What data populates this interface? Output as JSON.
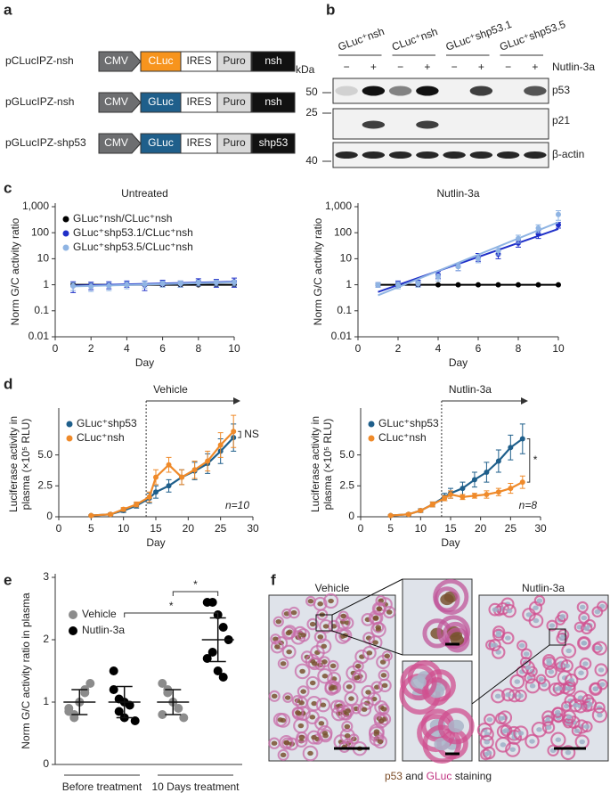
{
  "panel_labels": [
    "a",
    "b",
    "c",
    "d",
    "e",
    "f"
  ],
  "constructs": {
    "rows": [
      {
        "name": "pCLucIPZ-nsh",
        "parts": [
          "CMV",
          "CLuc",
          "IRES",
          "Puro",
          "nsh"
        ]
      },
      {
        "name": "pGLucIPZ-nsh",
        "parts": [
          "CMV",
          "GLuc",
          "IRES",
          "Puro",
          "nsh"
        ]
      },
      {
        "name": "pGLucIPZ-shp53",
        "parts": [
          "CMV",
          "GLuc",
          "IRES",
          "Puro",
          "shp53"
        ]
      }
    ]
  },
  "blot": {
    "groups": [
      "GLuc⁺nsh",
      "CLuc⁺nsh",
      "GLuc⁺shp53.1",
      "GLuc⁺shp53.5"
    ],
    "treatment": [
      "−",
      "+",
      "−",
      "+",
      "−",
      "+",
      "−",
      "+"
    ],
    "treatment_label": "Nutlin-3a",
    "unit": "kDa",
    "markers": [
      50,
      25,
      40
    ],
    "proteins": [
      "p53",
      "p21",
      "β-actin"
    ]
  },
  "chart_data": [
    {
      "type": "line",
      "title": "Untreated",
      "xlabel": "Day",
      "ylabel": "Norm G/C activity ratio",
      "log_y": true,
      "xlim": [
        0,
        10
      ],
      "ylim": [
        0.01,
        1000
      ],
      "xticks": [
        0,
        2,
        4,
        6,
        8,
        10
      ],
      "yticks": [
        0.01,
        0.1,
        1,
        10,
        100,
        {
          "value": 1000,
          "label": "1,000"
        }
      ],
      "legend": "upper left",
      "fit": "exponential",
      "x": [
        1,
        2,
        3,
        4,
        5,
        6,
        7,
        8,
        9,
        10
      ],
      "series": [
        {
          "name": "GLuc⁺nsh/CLuc⁺nsh",
          "color": "#000000",
          "values": [
            1,
            1,
            1,
            1,
            1,
            1,
            1,
            1,
            1,
            1
          ]
        },
        {
          "name": "GLuc⁺shp53.1/CLuc⁺nsh",
          "color": "#1f2fc8",
          "values": [
            0.9,
            0.95,
            1.0,
            1.1,
            1.0,
            1.2,
            1.1,
            1.3,
            1.2,
            1.3
          ],
          "errors": [
            0.4,
            0.3,
            0.3,
            0.3,
            0.4,
            0.3,
            0.3,
            0.4,
            0.4,
            0.5
          ]
        },
        {
          "name": "GLuc⁺shp53.5/CLuc⁺nsh",
          "color": "#8fb4e3",
          "values": [
            0.9,
            0.85,
            0.9,
            1.0,
            1.05,
            1.1,
            1.1,
            1.2,
            1.2,
            1.2
          ],
          "errors": [
            0.3,
            0.3,
            0.3,
            0.3,
            0.3,
            0.3,
            0.3,
            0.3,
            0.3,
            0.3
          ]
        }
      ]
    },
    {
      "type": "line",
      "title": "Nutlin-3a",
      "xlabel": "Day",
      "ylabel": "Norm G/C activity ratio",
      "log_y": true,
      "xlim": [
        0,
        10
      ],
      "ylim": [
        0.01,
        1000
      ],
      "xticks": [
        0,
        2,
        4,
        6,
        8,
        10
      ],
      "yticks": [
        0.01,
        0.1,
        1,
        10,
        100,
        {
          "value": 1000,
          "label": "1,000"
        }
      ],
      "fit": "exponential",
      "x": [
        1,
        2,
        3,
        4,
        5,
        6,
        7,
        8,
        9,
        10
      ],
      "series": [
        {
          "color": "#000000",
          "values": [
            1,
            1,
            1,
            1,
            1,
            1,
            1,
            1,
            1,
            1
          ]
        },
        {
          "color": "#1f2fc8",
          "values": [
            1,
            1.1,
            1.2,
            2.5,
            5,
            12,
            15,
            40,
            90,
            200
          ],
          "errors": [
            0.2,
            0.3,
            0.3,
            0.8,
            1.5,
            4,
            5,
            12,
            30,
            50
          ]
        },
        {
          "color": "#8fb4e3",
          "values": [
            1,
            1,
            1.1,
            2,
            5,
            10,
            20,
            60,
            150,
            500
          ],
          "errors": [
            0.2,
            0.3,
            0.3,
            0.6,
            1.5,
            3,
            6,
            20,
            50,
            200
          ]
        }
      ]
    },
    {
      "type": "line",
      "xlabel": "Day",
      "ylabel": [
        "Luciferase activity in",
        "plasma (×10⁵ RLU)"
      ],
      "xlim": [
        0,
        30
      ],
      "ylim": [
        0,
        8.5
      ],
      "xticks": [
        0,
        5,
        10,
        15,
        20,
        25,
        30
      ],
      "yticks": [
        0,
        2.5,
        {
          "value": 5,
          "label": "5.0"
        }
      ],
      "legend": "upper left",
      "fit": "trend",
      "treatment": {
        "label": "Vehicle",
        "start": 13.5
      },
      "bracket": "NS",
      "note": "n=10",
      "x": [
        5,
        8,
        10,
        12,
        14,
        15,
        17,
        19,
        21,
        23,
        25,
        27
      ],
      "series": [
        {
          "name": "GLuc⁺shp53",
          "color": "#1f5f8b",
          "values": [
            0.1,
            0.2,
            0.5,
            0.9,
            1.5,
            2.0,
            2.5,
            3.2,
            3.7,
            4.3,
            5.3,
            6.4
          ],
          "errors": [
            0.05,
            0.1,
            0.15,
            0.2,
            0.4,
            0.5,
            0.5,
            0.6,
            0.7,
            0.8,
            1.0,
            1.1
          ]
        },
        {
          "name": "CLuc⁺nsh",
          "color": "#ef8a2a",
          "values": [
            0.1,
            0.2,
            0.6,
            1.0,
            1.6,
            3.2,
            4.2,
            3.2,
            3.8,
            4.5,
            5.8,
            6.9
          ],
          "errors": [
            0.05,
            0.1,
            0.15,
            0.2,
            0.4,
            0.6,
            0.6,
            0.6,
            0.7,
            0.8,
            1.0,
            1.3
          ]
        }
      ]
    },
    {
      "type": "line",
      "xlabel": "Day",
      "ylabel": [
        "Luciferase activity in",
        "plasma (×10⁵ RLU)"
      ],
      "xlim": [
        0,
        30
      ],
      "ylim": [
        0,
        8.5
      ],
      "xticks": [
        0,
        5,
        10,
        15,
        20,
        25,
        30
      ],
      "yticks": [
        0,
        2.5,
        {
          "value": 5,
          "label": "5.0"
        }
      ],
      "legend": "upper left",
      "fit": "trend",
      "treatment": {
        "label": "Nutlin-3a",
        "start": 13.5
      },
      "bracket": "*",
      "note": "n=8",
      "x": [
        5,
        8,
        10,
        12,
        14,
        15,
        17,
        19,
        21,
        23,
        25,
        27
      ],
      "series": [
        {
          "name": "GLuc⁺shp53",
          "color": "#1f5f8b",
          "values": [
            0.1,
            0.2,
            0.5,
            1.0,
            1.6,
            1.9,
            2.3,
            3.0,
            3.6,
            4.5,
            5.6,
            6.3
          ],
          "errors": [
            0.05,
            0.1,
            0.15,
            0.2,
            0.3,
            0.4,
            0.5,
            0.6,
            0.8,
            0.9,
            1.0,
            1.2
          ]
        },
        {
          "name": "CLuc⁺nsh",
          "color": "#ef8a2a",
          "values": [
            0.1,
            0.2,
            0.5,
            1.0,
            1.5,
            1.8,
            1.6,
            1.7,
            1.8,
            2.0,
            2.3,
            2.8
          ],
          "errors": [
            0.05,
            0.1,
            0.1,
            0.2,
            0.2,
            0.3,
            0.2,
            0.2,
            0.3,
            0.3,
            0.4,
            0.5
          ]
        }
      ]
    },
    {
      "type": "dot",
      "ylabel": "Norm G/C activity ratio in plasma",
      "ylim": [
        0,
        3
      ],
      "yticks": [
        0,
        1,
        2,
        3
      ],
      "categories": [
        "Before treatment",
        "10 Days treatment"
      ],
      "legend": "upper left",
      "series": [
        {
          "name": "Vehicle",
          "color": "#8c8c8c"
        },
        {
          "name": "Nutlin-3a",
          "color": "#000000"
        }
      ],
      "groups": [
        {
          "category": 0,
          "series": 0,
          "values": [
            0.85,
            0.8,
            1.0,
            1.2,
            1.3,
            0.9,
            0.75,
            1.0,
            1.15
          ],
          "mean": 1.0,
          "sd": 0.2
        },
        {
          "category": 0,
          "series": 1,
          "values": [
            1.5,
            1.05,
            1.0,
            0.95,
            0.7,
            1.2,
            0.85,
            0.75
          ],
          "mean": 1.0,
          "sd": 0.25
        },
        {
          "category": 1,
          "series": 0,
          "values": [
            1.3,
            1.2,
            1.0,
            0.9,
            0.75,
            0.8,
            1.15,
            1.0
          ],
          "mean": 1.0,
          "sd": 0.2
        },
        {
          "category": 1,
          "series": 1,
          "values": [
            2.6,
            2.6,
            2.4,
            2.2,
            2.0,
            1.7,
            1.8,
            1.5,
            1.4
          ],
          "mean": 2.0,
          "sd": 0.35
        }
      ],
      "significance": [
        "*",
        "*"
      ]
    }
  ],
  "staining": {
    "titles": [
      "Vehicle",
      "Nutlin-3a"
    ],
    "caption": [
      "p53",
      " and ",
      "GLuc",
      " staining"
    ]
  }
}
